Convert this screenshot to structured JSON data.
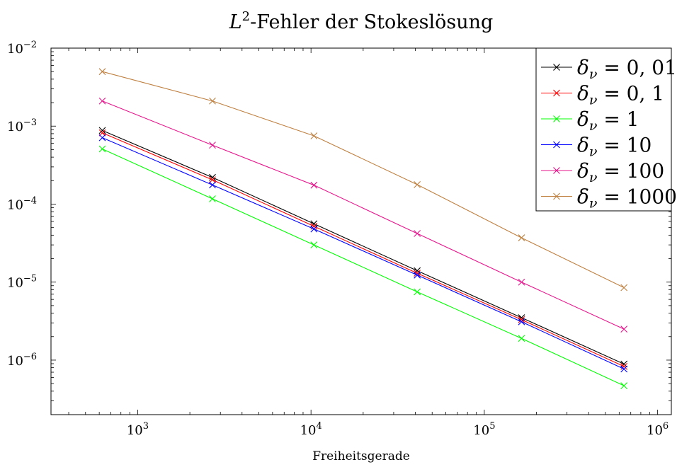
{
  "chart_data": {
    "type": "line",
    "title": "L²-Fehler der Stokeslösung",
    "xlabel": "Freiheitsgerade",
    "ylabel": "",
    "x_scale": "log",
    "y_scale": "log",
    "xlim": [
      316,
      1200000
    ],
    "ylim": [
      2e-07,
      0.01
    ],
    "x_ticks": [
      {
        "value": 1000,
        "base": "10",
        "exp": "3"
      },
      {
        "value": 10000,
        "base": "10",
        "exp": "4"
      },
      {
        "value": 100000,
        "base": "10",
        "exp": "5"
      },
      {
        "value": 1000000,
        "base": "10",
        "exp": "6"
      }
    ],
    "y_ticks": [
      {
        "value": 0.01,
        "base": "10",
        "exp": "−2"
      },
      {
        "value": 0.001,
        "base": "10",
        "exp": "−3"
      },
      {
        "value": 0.0001,
        "base": "10",
        "exp": "−4"
      },
      {
        "value": 1e-05,
        "base": "10",
        "exp": "−5"
      },
      {
        "value": 1e-06,
        "base": "10",
        "exp": "−6"
      }
    ],
    "grid": false,
    "legend_position": "top-right",
    "x": [
      625,
      2700,
      10400,
      41000,
      164000,
      640000
    ],
    "series": [
      {
        "name": "δν = 0, 01",
        "color": "#000000",
        "values": [
          0.00088,
          0.00022,
          5.6e-05,
          1.4e-05,
          3.5e-06,
          8.9e-07
        ]
      },
      {
        "name": "δν = 0, 1",
        "color": "#ff0000",
        "values": [
          0.00082,
          0.000205,
          5.2e-05,
          1.3e-05,
          3.3e-06,
          8.3e-07
        ]
      },
      {
        "name": "δν = 1",
        "color": "#00ff00",
        "values": [
          0.00051,
          0.000117,
          3e-05,
          7.5e-06,
          1.9e-06,
          4.7e-07
        ]
      },
      {
        "name": "δν = 10",
        "color": "#0000ff",
        "values": [
          0.00071,
          0.000176,
          4.8e-05,
          1.23e-05,
          3.1e-06,
          7.7e-07
        ]
      },
      {
        "name": "δν = 100",
        "color": "#e6148c",
        "values": [
          0.0021,
          0.00057,
          0.000175,
          4.2e-05,
          1e-05,
          2.5e-06
        ]
      },
      {
        "name": "δν = 1000",
        "color": "#bf8040",
        "values": [
          0.005,
          0.0021,
          0.00075,
          0.000178,
          3.7e-05,
          8.5e-06
        ]
      }
    ]
  }
}
